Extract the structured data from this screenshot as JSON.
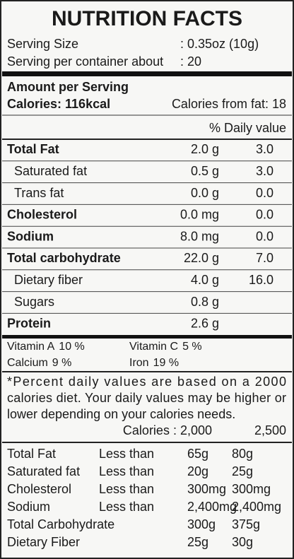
{
  "title": "NUTRITION FACTS",
  "serving": [
    {
      "label": "Serving Size",
      "value": ": 0.35oz (10g)"
    },
    {
      "label": "Serving per container about",
      "value": ": 20"
    }
  ],
  "amount_per_serving": "Amount per Serving",
  "calories": "Calories: 116kcal",
  "calories_from_fat": "Calories from fat: 18",
  "daily_value_header": "% Daily value",
  "nutrients": [
    {
      "name": "Total Fat",
      "amount": "2.0 g",
      "dv": "3.0"
    },
    {
      "name": "Saturated fat",
      "amount": "0.5 g",
      "dv": "3.0"
    },
    {
      "name": "Trans fat",
      "amount": "0.0 g",
      "dv": "0.0"
    },
    {
      "name": "Cholesterol",
      "amount": "0.0 mg",
      "dv": "0.0"
    },
    {
      "name": "Sodium",
      "amount": "8.0 mg",
      "dv": "0.0"
    },
    {
      "name": "Total carbohydrate",
      "amount": "22.0 g",
      "dv": "7.0"
    },
    {
      "name": "Dietary fiber",
      "amount": "4.0 g",
      "dv": "16.0"
    },
    {
      "name": "Sugars",
      "amount": "0.8 g",
      "dv": null
    },
    {
      "name": "Protein",
      "amount": "2.6 g",
      "dv": null
    }
  ],
  "vitamins": [
    {
      "name": "Vitamin A",
      "value": "10 %"
    },
    {
      "name": "Vitamin C",
      "value": "5 %"
    },
    {
      "name": "Calcium",
      "value": "9 %"
    },
    {
      "name": "Iron",
      "value": "19 %"
    }
  ],
  "footnote": [
    "*Percent daily values are based on a 2000",
    "calories diet. Your daily values may be higher or",
    "lower depending on your calories needs."
  ],
  "calorie_levels": {
    "label": "Calories : 2,000",
    "high": "2,500"
  },
  "reference": [
    [
      "Total Fat",
      "Less than",
      "65g",
      "80g"
    ],
    [
      "Saturated fat",
      "Less than",
      "20g",
      "25g"
    ],
    [
      "Cholesterol",
      "Less than",
      "300mg",
      "300mg"
    ],
    [
      "Sodium",
      "Less than",
      "2,400mg",
      "2,400mg"
    ],
    [
      "Total Carbohydrate",
      null,
      "300g",
      "375g"
    ],
    [
      "Dietary Fiber",
      null,
      "25g",
      "30g"
    ]
  ]
}
